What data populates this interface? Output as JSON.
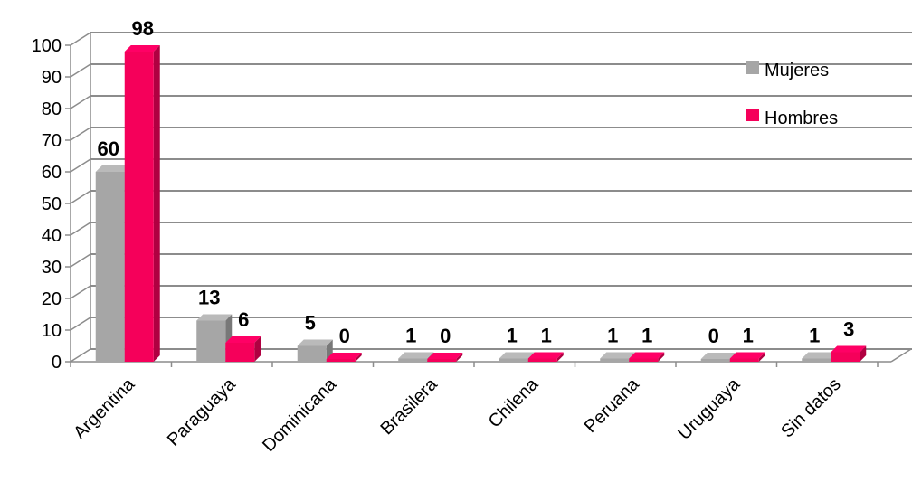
{
  "chart_data": {
    "type": "bar",
    "style": "3d-clustered-column",
    "categories": [
      "Argentina",
      "Paraguaya",
      "Dominicana",
      "Brasilera",
      "Chilena",
      "Peruana",
      "Uruguaya",
      "Sin datos"
    ],
    "series": [
      {
        "name": "Mujeres",
        "color": "#a6a6a6",
        "values": [
          60,
          13,
          5,
          1,
          1,
          1,
          0,
          1
        ]
      },
      {
        "name": "Hombres",
        "color": "#f5005a",
        "values": [
          98,
          6,
          0,
          0,
          1,
          1,
          1,
          3
        ]
      }
    ],
    "yticks": [
      "0",
      "10",
      "20",
      "30",
      "40",
      "50",
      "60",
      "70",
      "80",
      "90",
      "100"
    ],
    "ylim": [
      0,
      100
    ],
    "grid": true,
    "legend_position": "top-right",
    "data_labels": true
  }
}
